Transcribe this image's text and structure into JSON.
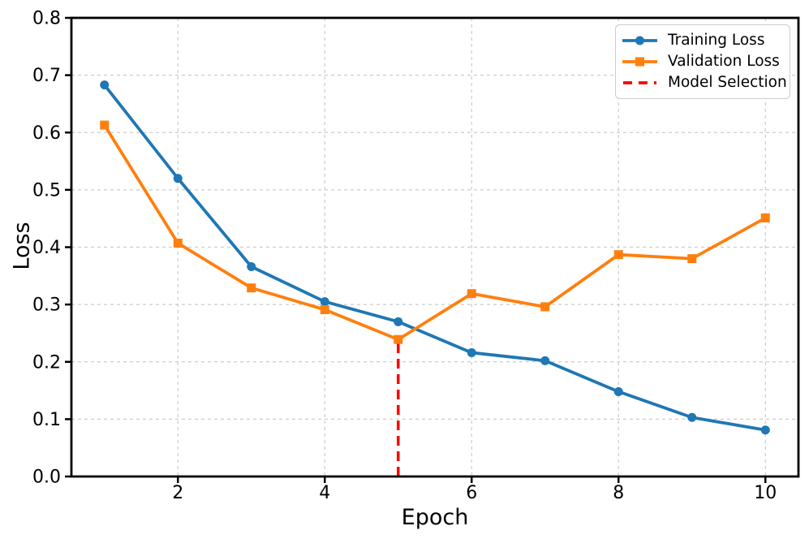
{
  "chart_data": {
    "type": "line",
    "title": "",
    "xlabel": "Epoch",
    "ylabel": "Loss",
    "xlim": [
      0.55,
      10.45
    ],
    "ylim": [
      0.0,
      0.8
    ],
    "xticks": [
      2,
      4,
      6,
      8,
      10
    ],
    "yticks": [
      0.0,
      0.1,
      0.2,
      0.3,
      0.4,
      0.5,
      0.6,
      0.7,
      0.8
    ],
    "grid": true,
    "legend_position": "upper right",
    "x": [
      1,
      2,
      3,
      4,
      5,
      6,
      7,
      8,
      9,
      10
    ],
    "series": [
      {
        "name": "Training Loss",
        "color": "#1f77b4",
        "marker": "circle",
        "linestyle": "solid",
        "values": [
          0.683,
          0.52,
          0.366,
          0.305,
          0.27,
          0.216,
          0.202,
          0.148,
          0.103,
          0.081
        ]
      },
      {
        "name": "Validation Loss",
        "color": "#ff7f0e",
        "marker": "square",
        "linestyle": "solid",
        "values": [
          0.613,
          0.407,
          0.329,
          0.291,
          0.239,
          0.319,
          0.296,
          0.387,
          0.38,
          0.451
        ]
      }
    ],
    "annotations": [
      {
        "name": "Model Selection",
        "type": "vline",
        "x": 5,
        "y_from": 0.0,
        "y_to": 0.239,
        "color": "#ff0000",
        "style": "dashed"
      }
    ]
  }
}
